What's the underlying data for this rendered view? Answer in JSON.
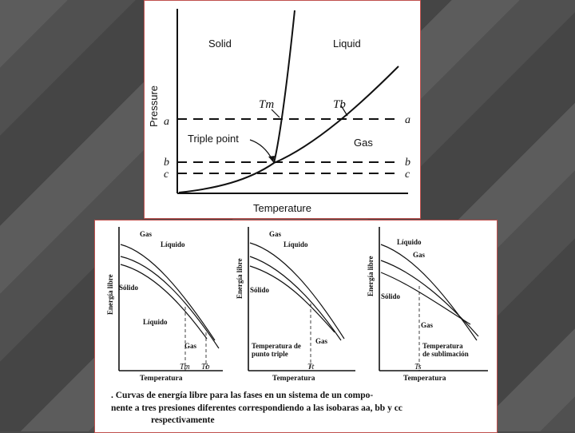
{
  "top_figure": {
    "y_axis_label": "Pressure",
    "x_axis_label": "Temperature",
    "region_solid": "Solid",
    "region_liquid": "Liquid",
    "region_gas": "Gas",
    "triple_point_label": "Triple point",
    "tm_label": "Tm",
    "tb_label": "Tb",
    "isobars": [
      {
        "left": "a",
        "right": "a"
      },
      {
        "left": "b",
        "right": "b"
      },
      {
        "left": "c",
        "right": "c"
      }
    ]
  },
  "bottom_figure": {
    "panels": [
      {
        "y_axis_label": "Energía libre",
        "x_axis_label": "Temperatura",
        "labels": {
          "gas_top": "Gas",
          "liquido_top": "Líquido",
          "solido": "Sólido",
          "liquido_low": "Líquido",
          "gas_low": "Gas"
        },
        "tick1": "Tm",
        "tick2": "Tb"
      },
      {
        "y_axis_label": "Energía libre",
        "x_axis_label": "Temperatura",
        "labels": {
          "gas_top": "Gas",
          "liquido_top": "Líquido",
          "solido": "Sólido",
          "gas_low": "Gas"
        },
        "annotation_line1": "Temperatura de",
        "annotation_line2": "punto triple",
        "tick1": "Tt"
      },
      {
        "y_axis_label": "Energía libre",
        "x_axis_label": "Temperatura",
        "labels": {
          "liquido_top": "Líquido",
          "gas_top": "Gas",
          "solido": "Sólido",
          "gas_low": "Gas"
        },
        "annotation_line1": "Temperatura",
        "annotation_line2": "de sublimación",
        "tick1": "Ts"
      }
    ],
    "caption_line1": ".  Curvas de energía libre para las fases en un sistema de un compo-",
    "caption_line2": "nente a tres presiones diferentes correspondiendo a las isobaras aa, bb y cc",
    "caption_line3": "respectivamente"
  }
}
